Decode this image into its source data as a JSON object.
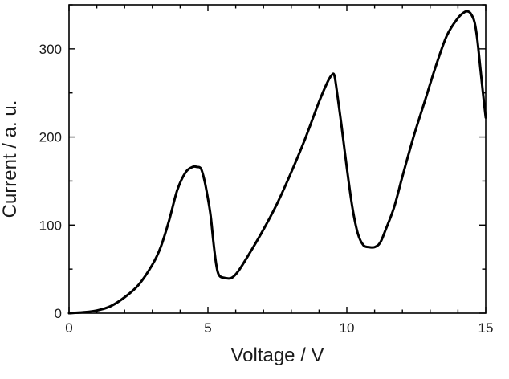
{
  "chart_data": {
    "type": "line",
    "xlabel": "Voltage  /  V",
    "ylabel": "Current  / a. u.",
    "xlim": [
      0,
      15
    ],
    "ylim": [
      0,
      350
    ],
    "xticks": [
      0,
      5,
      10,
      15
    ],
    "yticks": [
      0,
      100,
      200,
      300
    ],
    "x_minor_step": 1,
    "y_minor_step": 50,
    "grid": false,
    "legend": "none",
    "line_color": "#000000",
    "series": [
      {
        "x": [
          0,
          0.5,
          1.0,
          1.5,
          2.0,
          2.5,
          3.0,
          3.3,
          3.6,
          3.9,
          4.2,
          4.45,
          4.6,
          4.75,
          4.88,
          5.0,
          5.1,
          5.2,
          5.3,
          5.4,
          5.6,
          5.85,
          6.1,
          6.5,
          7.0,
          7.5,
          8.0,
          8.5,
          9.0,
          9.3,
          9.45,
          9.55,
          9.65,
          9.8,
          10.0,
          10.2,
          10.4,
          10.6,
          10.8,
          11.0,
          11.2,
          11.4,
          11.7,
          12.0,
          12.4,
          12.8,
          13.2,
          13.6,
          14.0,
          14.25,
          14.4,
          14.5,
          14.6,
          14.7,
          14.8,
          14.9,
          15.0
        ],
        "y": [
          0,
          1,
          3,
          8,
          18,
          32,
          55,
          75,
          105,
          140,
          160,
          166,
          166,
          164,
          150,
          130,
          110,
          80,
          55,
          43,
          40,
          40,
          48,
          68,
          95,
          125,
          160,
          198,
          240,
          262,
          270,
          270,
          250,
          215,
          165,
          120,
          90,
          77,
          75,
          75,
          80,
          95,
          120,
          155,
          200,
          240,
          280,
          315,
          335,
          342,
          342,
          338,
          330,
          310,
          280,
          250,
          222
        ]
      }
    ]
  }
}
